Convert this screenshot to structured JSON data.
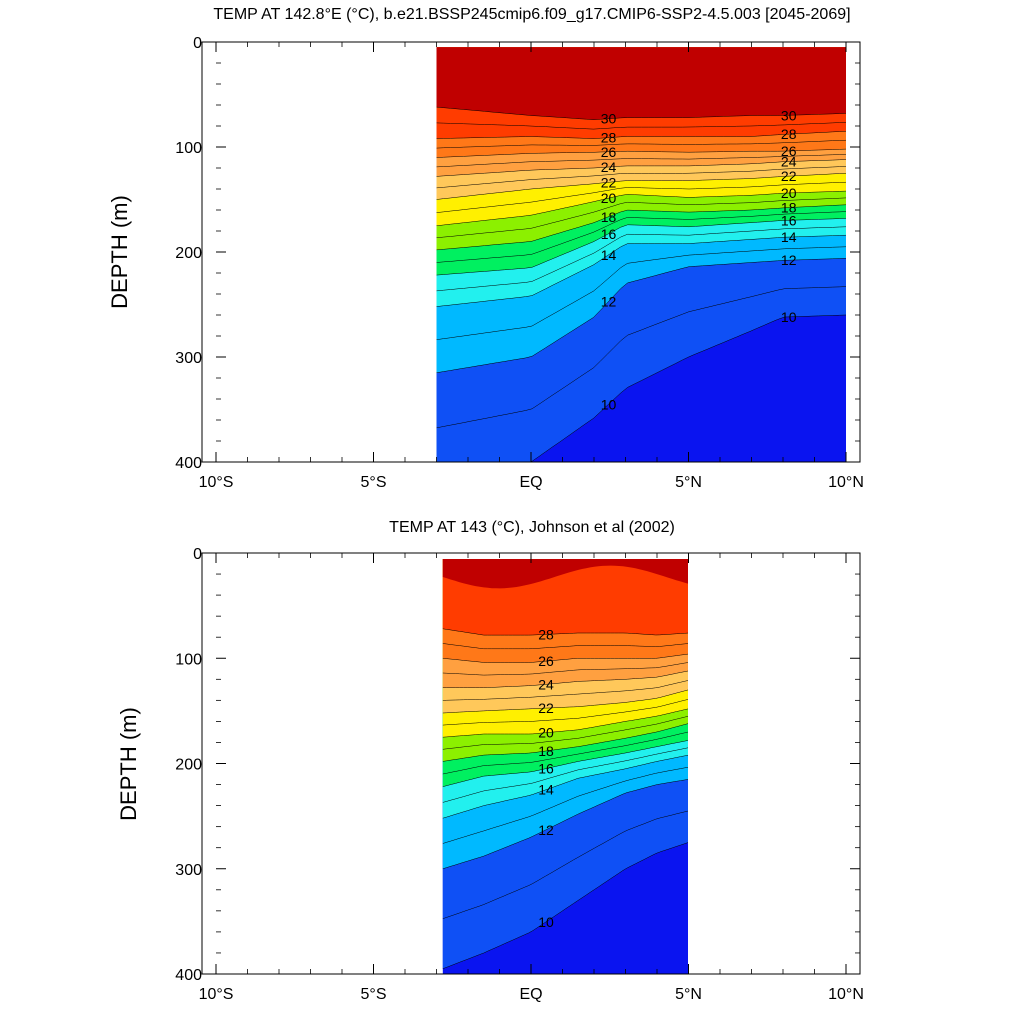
{
  "chart_data": [
    {
      "type": "contour",
      "title": "TEMP AT 142.8°E (°C), b.e21.BSSP245cmip6.f09_g17.CMIP6-SSP2-4.5.003 [2045-2069]",
      "xlabel": "",
      "ylabel": "DEPTH (m)",
      "xlim": [
        -10,
        10
      ],
      "ylim": [
        400,
        0
      ],
      "xticks": [
        -10,
        -5,
        0,
        5,
        10
      ],
      "xtick_labels": [
        "10°S",
        "5°S",
        "EQ",
        "5°N",
        "10°N"
      ],
      "yticks": [
        0,
        100,
        200,
        300,
        400
      ],
      "ytick_labels": [
        "0",
        "100",
        "200",
        "300",
        "400"
      ],
      "data_lat_range": [
        -3,
        10
      ],
      "data_depth_range": [
        5,
        400
      ],
      "contour_levels": [
        8,
        9,
        10,
        11,
        12,
        13,
        14,
        15,
        16,
        17,
        18,
        19,
        20,
        21,
        22,
        23,
        24,
        25,
        26,
        27,
        28,
        29,
        30
      ],
      "contour_line_labels": [
        "30",
        "28",
        "26",
        "24",
        "22",
        "20",
        "18",
        "16",
        "14",
        "12",
        "10",
        "30",
        "28",
        "26",
        "24",
        "22",
        "20",
        "18",
        "16",
        "14",
        "12"
      ],
      "isotherm_depths": {
        "lat": [
          -3,
          0,
          2,
          3,
          5,
          7,
          8,
          10
        ],
        "30": [
          62,
          70,
          74,
          72,
          72,
          70,
          70,
          68
        ],
        "28": [
          92,
          90,
          92,
          90,
          90,
          90,
          88,
          85
        ],
        "26": [
          110,
          106,
          105,
          104,
          105,
          104,
          104,
          102
        ],
        "24": [
          128,
          122,
          120,
          118,
          118,
          116,
          114,
          112
        ],
        "22": [
          150,
          140,
          135,
          132,
          132,
          130,
          128,
          125
        ],
        "20": [
          175,
          165,
          152,
          145,
          148,
          146,
          144,
          142
        ],
        "18": [
          198,
          190,
          172,
          160,
          162,
          160,
          158,
          155
        ],
        "16": [
          222,
          215,
          190,
          174,
          176,
          172,
          170,
          168
        ],
        "14": [
          252,
          242,
          212,
          192,
          192,
          188,
          186,
          184
        ],
        "12": [
          315,
          300,
          262,
          230,
          214,
          210,
          208,
          206
        ],
        "10": [
          420,
          400,
          358,
          330,
          300,
          275,
          262,
          260
        ]
      },
      "warm_cap_30plus": true
    },
    {
      "type": "contour",
      "title": "TEMP AT 143 (°C), Johnson et al (2002)",
      "xlabel": "",
      "ylabel": "DEPTH (m)",
      "xlim": [
        -10,
        10
      ],
      "ylim": [
        400,
        0
      ],
      "xticks": [
        -10,
        -5,
        0,
        5,
        10
      ],
      "xtick_labels": [
        "10°S",
        "5°S",
        "EQ",
        "5°N",
        "10°N"
      ],
      "yticks": [
        0,
        100,
        200,
        300,
        400
      ],
      "ytick_labels": [
        "0",
        "100",
        "200",
        "300",
        "400"
      ],
      "data_lat_range": [
        -2.8,
        5
      ],
      "data_depth_range": [
        5,
        400
      ],
      "contour_levels": [
        9,
        10,
        11,
        12,
        13,
        14,
        15,
        16,
        17,
        18,
        19,
        20,
        21,
        22,
        23,
        24,
        25,
        26,
        27,
        28,
        29
      ],
      "contour_line_labels": [
        "28",
        "26",
        "24",
        "22",
        "20",
        "18",
        "16",
        "14",
        "12",
        "10"
      ],
      "isotherm_depths": {
        "lat": [
          -2.8,
          -1.5,
          0,
          1.5,
          3,
          4,
          5
        ],
        "28": [
          72,
          78,
          78,
          76,
          76,
          78,
          76
        ],
        "26": [
          100,
          104,
          104,
          100,
          100,
          100,
          96
        ],
        "24": [
          128,
          128,
          126,
          122,
          120,
          118,
          112
        ],
        "22": [
          152,
          150,
          148,
          146,
          142,
          138,
          130
        ],
        "20": [
          175,
          172,
          172,
          168,
          160,
          155,
          148
        ],
        "18": [
          198,
          192,
          190,
          184,
          176,
          170,
          162
        ],
        "16": [
          222,
          212,
          208,
          198,
          190,
          184,
          178
        ],
        "14": [
          252,
          240,
          230,
          214,
          205,
          198,
          192
        ],
        "12": [
          300,
          288,
          270,
          248,
          228,
          220,
          215
        ],
        "10": [
          395,
          380,
          360,
          330,
          300,
          285,
          275
        ]
      },
      "warm_cap_29plus": true
    }
  ]
}
